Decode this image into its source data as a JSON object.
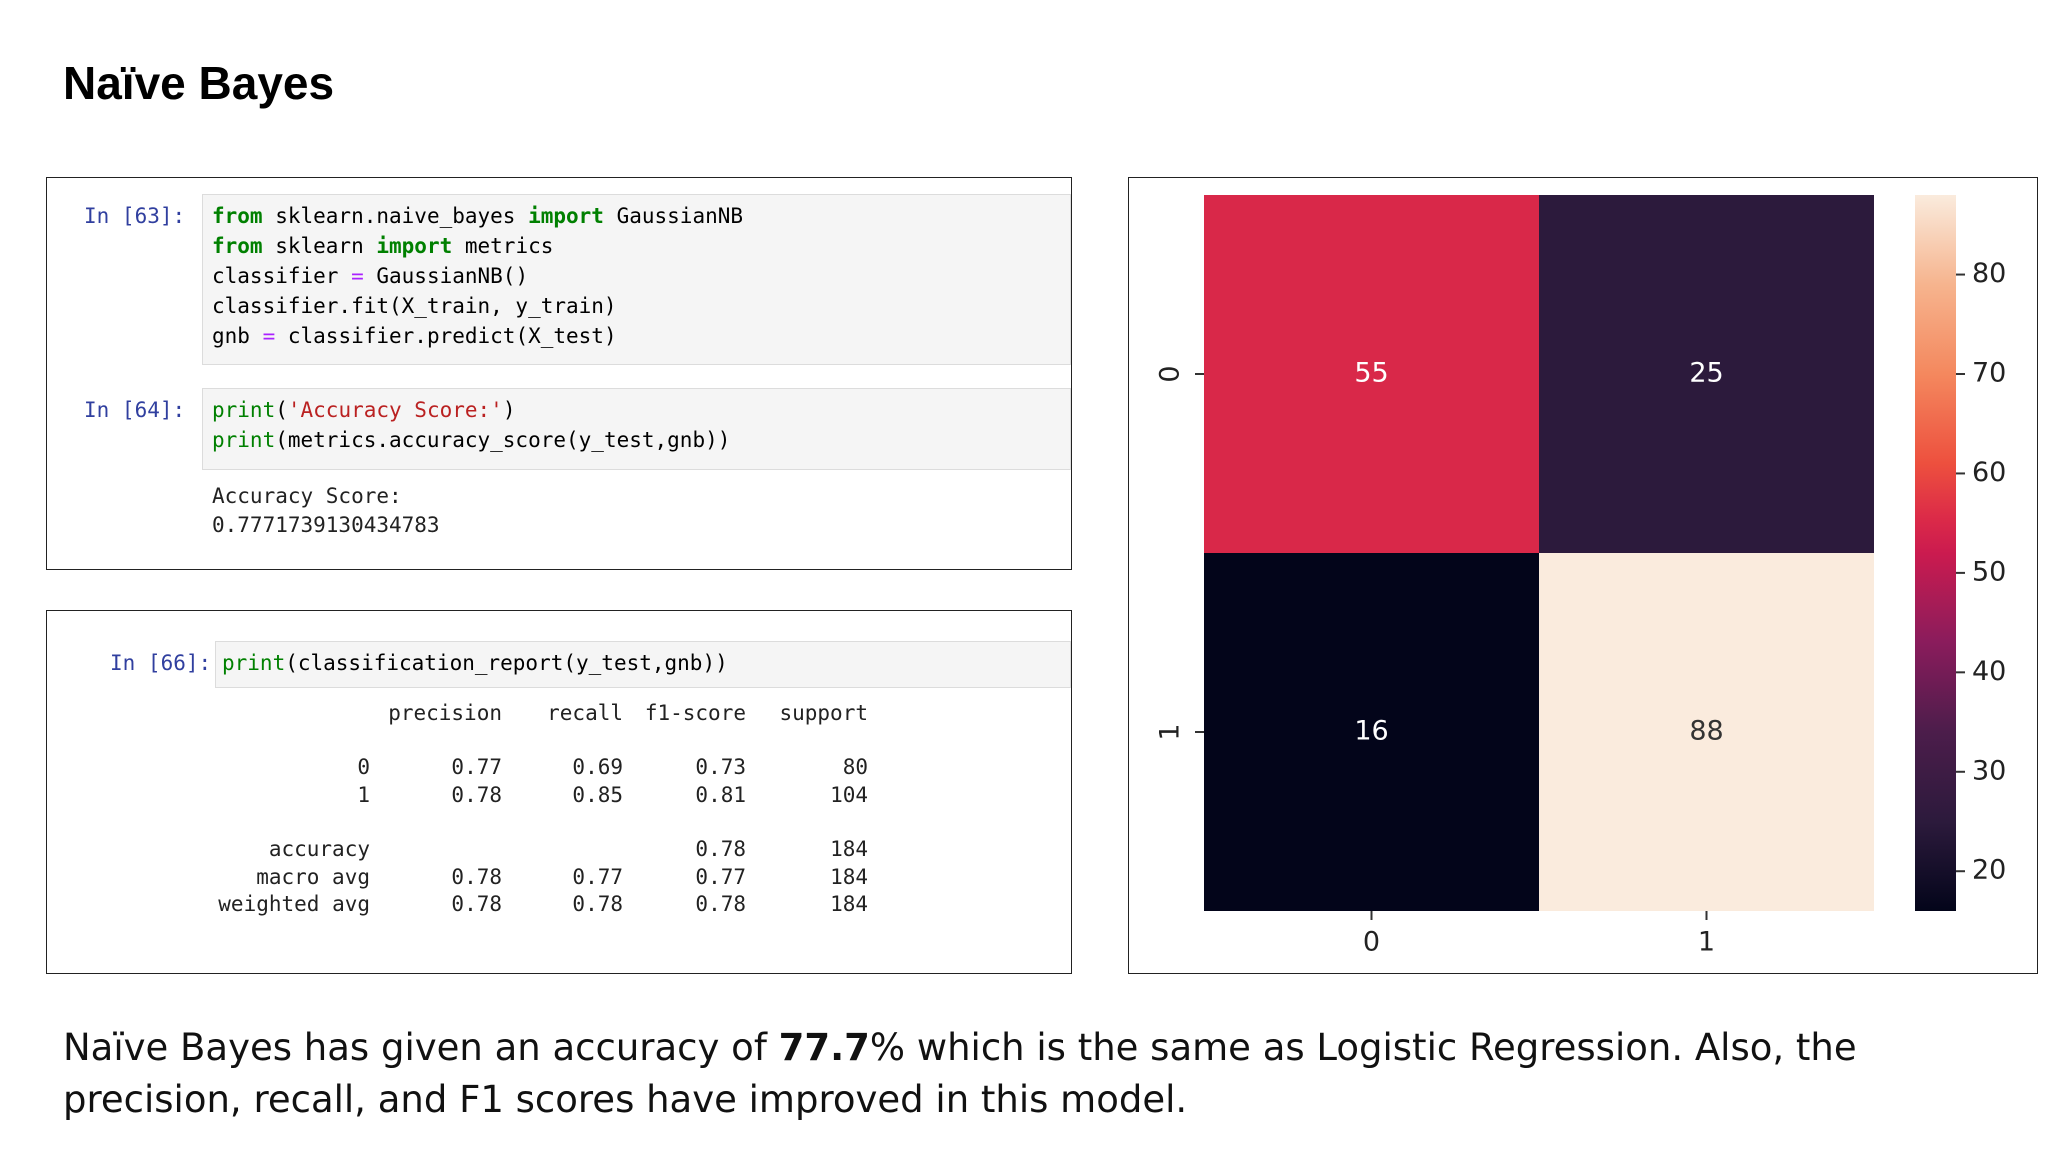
{
  "title": "Naïve Bayes",
  "cells": [
    {
      "prompt": "In [63]:",
      "code": [
        "from sklearn.naive_bayes import GaussianNB",
        "from sklearn import metrics",
        "classifier = GaussianNB()",
        "classifier.fit(X_train, y_train)",
        "gnb = classifier.predict(X_test)"
      ]
    },
    {
      "prompt": "In [64]:",
      "code": [
        "print('Accuracy Score:')",
        "print(metrics.accuracy_score(y_test,gnb))"
      ],
      "output": [
        "Accuracy Score:",
        "0.7771739130434783"
      ]
    }
  ],
  "report_cell": {
    "prompt": "In [66]:",
    "code": [
      "print(classification_report(y_test,gnb))"
    ],
    "header": [
      "precision",
      "recall",
      "f1-score",
      "support"
    ],
    "rows": [
      [
        "0",
        "0.77",
        "0.69",
        "0.73",
        "80"
      ],
      [
        "1",
        "0.78",
        "0.85",
        "0.81",
        "104"
      ],
      [
        "accuracy",
        null,
        null,
        "0.78",
        "184"
      ],
      [
        "macro avg",
        "0.78",
        "0.77",
        "0.77",
        "184"
      ],
      [
        "weighted avg",
        "0.78",
        "0.78",
        "0.78",
        "184"
      ]
    ]
  },
  "chart_data": {
    "type": "heatmap",
    "x": [
      "0",
      "1"
    ],
    "y": [
      "0",
      "1"
    ],
    "values": [
      [
        55,
        25
      ],
      [
        16,
        88
      ]
    ],
    "colormap": "rocket",
    "clim": [
      16,
      88
    ],
    "cticks": [
      20,
      30,
      40,
      50,
      60,
      70,
      80
    ]
  },
  "caption": {
    "before": "Naïve Bayes has given an accuracy of ",
    "bold": "77.7",
    "after": "% which is the same as Logistic Regression. Also, the precision, recall, and F1 scores have improved in this model."
  }
}
